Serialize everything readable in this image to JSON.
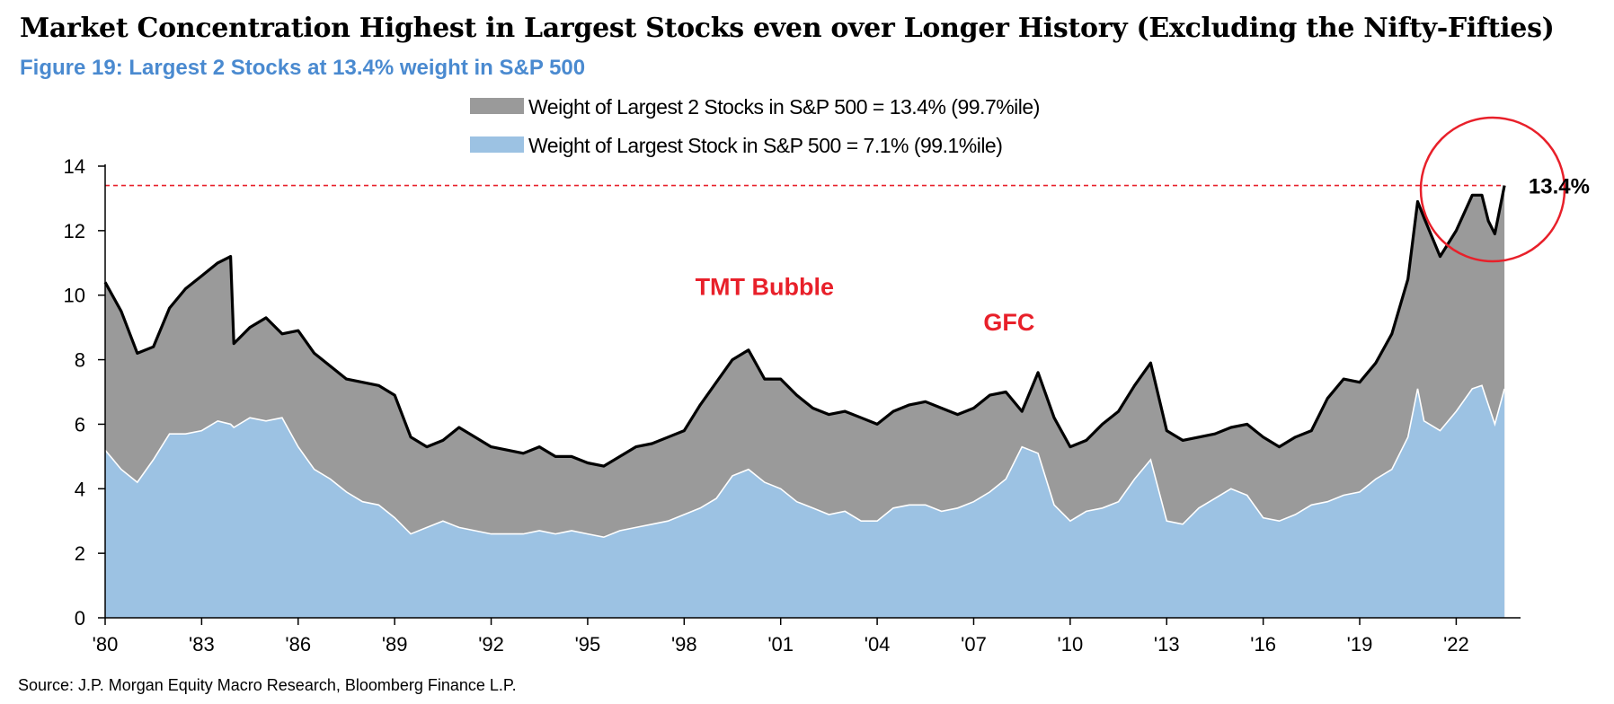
{
  "header": {
    "title": "Market Concentration Highest in Largest Stocks even over Longer History (Excluding the Nifty-Fifties)",
    "subtitle": "Figure 19: Largest 2 Stocks at 13.4% weight in S&P 500"
  },
  "footer": {
    "source": "Source: J.P. Morgan Equity Macro Research, Bloomberg Finance L.P."
  },
  "colors": {
    "top2_fill": "#9a9a9a",
    "top2_line": "#000000",
    "top1_fill": "#9cc2e3",
    "top1_line": "#ffffff",
    "reference_line": "#e8202a",
    "annotation": "#e8202a",
    "axis": "#000000"
  },
  "chart_data": {
    "type": "area",
    "xlabel": "",
    "ylabel": "",
    "xlim": [
      1980.0,
      2024.0
    ],
    "ylim": [
      0,
      14
    ],
    "yticks": [
      0,
      2,
      4,
      6,
      8,
      10,
      12,
      14
    ],
    "xtick_values": [
      1980,
      1983,
      1986,
      1989,
      1992,
      1995,
      1998,
      2001,
      2004,
      2007,
      2010,
      2013,
      2016,
      2019,
      2022
    ],
    "xtick_labels": [
      "'80",
      "'83",
      "'86",
      "'89",
      "'92",
      "'95",
      "'98",
      "'01",
      "'04",
      "'07",
      "'10",
      "'13",
      "'16",
      "'19",
      "'22"
    ],
    "grid": false,
    "legend_position": "top-center",
    "x": [
      1980.0,
      1980.5,
      1981.0,
      1981.5,
      1982.0,
      1982.5,
      1983.0,
      1983.5,
      1983.9,
      1984.0,
      1984.5,
      1985.0,
      1985.5,
      1986.0,
      1986.5,
      1987.0,
      1987.5,
      1988.0,
      1988.5,
      1989.0,
      1989.5,
      1990.0,
      1990.5,
      1991.0,
      1991.5,
      1992.0,
      1992.5,
      1993.0,
      1993.5,
      1994.0,
      1994.5,
      1995.0,
      1995.5,
      1996.0,
      1996.5,
      1997.0,
      1997.5,
      1998.0,
      1998.5,
      1999.0,
      1999.5,
      2000.0,
      2000.5,
      2001.0,
      2001.5,
      2002.0,
      2002.5,
      2003.0,
      2003.5,
      2004.0,
      2004.5,
      2005.0,
      2005.5,
      2006.0,
      2006.5,
      2007.0,
      2007.5,
      2008.0,
      2008.5,
      2009.0,
      2009.5,
      2010.0,
      2010.5,
      2011.0,
      2011.5,
      2012.0,
      2012.5,
      2013.0,
      2013.5,
      2014.0,
      2014.5,
      2015.0,
      2015.5,
      2016.0,
      2016.5,
      2017.0,
      2017.5,
      2018.0,
      2018.5,
      2019.0,
      2019.5,
      2020.0,
      2020.5,
      2020.8,
      2021.0,
      2021.5,
      2022.0,
      2022.5,
      2022.8,
      2023.0,
      2023.2,
      2023.5
    ],
    "series": [
      {
        "name": "Weight of Largest 2 Stocks in S&P 500 = 13.4% (99.7%ile)",
        "values": [
          10.4,
          9.5,
          8.2,
          8.4,
          9.6,
          10.2,
          10.6,
          11.0,
          11.2,
          8.5,
          9.0,
          9.3,
          8.8,
          8.9,
          8.2,
          7.8,
          7.4,
          7.3,
          7.2,
          6.9,
          5.6,
          5.3,
          5.5,
          5.9,
          5.6,
          5.3,
          5.2,
          5.1,
          5.3,
          5.0,
          5.0,
          4.8,
          4.7,
          5.0,
          5.3,
          5.4,
          5.6,
          5.8,
          6.6,
          7.3,
          8.0,
          8.3,
          7.4,
          7.4,
          6.9,
          6.5,
          6.3,
          6.4,
          6.2,
          6.0,
          6.4,
          6.6,
          6.7,
          6.5,
          6.3,
          6.5,
          6.9,
          7.0,
          6.4,
          7.6,
          6.2,
          5.3,
          5.5,
          6.0,
          6.4,
          7.2,
          7.9,
          5.8,
          5.5,
          5.6,
          5.7,
          5.9,
          6.0,
          5.6,
          5.3,
          5.6,
          5.8,
          6.8,
          7.4,
          7.3,
          7.9,
          8.8,
          10.5,
          12.9,
          12.4,
          11.2,
          12.0,
          13.1,
          13.1,
          12.3,
          11.9,
          13.4
        ]
      },
      {
        "name": "Weight of Largest Stock in S&P 500 = 7.1% (99.1%ile)",
        "values": [
          5.2,
          4.6,
          4.2,
          4.9,
          5.7,
          5.7,
          5.8,
          6.1,
          6.0,
          5.9,
          6.2,
          6.1,
          6.2,
          5.3,
          4.6,
          4.3,
          3.9,
          3.6,
          3.5,
          3.1,
          2.6,
          2.8,
          3.0,
          2.8,
          2.7,
          2.6,
          2.6,
          2.6,
          2.7,
          2.6,
          2.7,
          2.6,
          2.5,
          2.7,
          2.8,
          2.9,
          3.0,
          3.2,
          3.4,
          3.7,
          4.4,
          4.6,
          4.2,
          4.0,
          3.6,
          3.4,
          3.2,
          3.3,
          3.0,
          3.0,
          3.4,
          3.5,
          3.5,
          3.3,
          3.4,
          3.6,
          3.9,
          4.3,
          5.3,
          5.1,
          3.5,
          3.0,
          3.3,
          3.4,
          3.6,
          4.3,
          4.9,
          3.0,
          2.9,
          3.4,
          3.7,
          4.0,
          3.8,
          3.1,
          3.0,
          3.2,
          3.5,
          3.6,
          3.8,
          3.9,
          4.3,
          4.6,
          5.6,
          7.1,
          6.1,
          5.8,
          6.4,
          7.1,
          7.2,
          6.6,
          6.0,
          7.1
        ]
      }
    ],
    "reference_line": {
      "y": 13.4
    },
    "annotations": [
      {
        "text": "TMT Bubble",
        "x": 2000.5,
        "y": 10.0
      },
      {
        "text": "GFC",
        "x": 2008.1,
        "y": 8.9
      },
      {
        "text": "13.4%",
        "x": 2025.2,
        "y": 13.4
      }
    ]
  }
}
